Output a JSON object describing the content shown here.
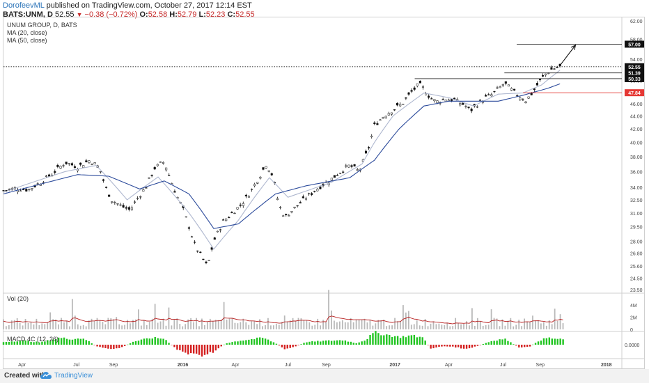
{
  "header": {
    "author": "DorofeevML",
    "published": " published on TradingView.com, October 27, 2017 12:14 EST",
    "symbol": "BATS:UNM, D",
    "last": "52.55",
    "change": "−0.38 (−0.72%)",
    "o_label": "O:",
    "o": "52.58",
    "h_label": "H:",
    "h": "52.79",
    "l_label": "L:",
    "l": "52.23",
    "c_label": "C:",
    "c": "52.55"
  },
  "legend": {
    "title": "UNUM GROUP, D, BATS",
    "ma20": "MA (20, close)",
    "ma50": "MA (50, close)"
  },
  "vol_label": "Vol (20)",
  "macd_label": "MACD 4C (12, 26)",
  "footer": {
    "created": "Created with",
    "brand": "TradingView"
  },
  "colors": {
    "up": "#222222",
    "ma20": "#aeb7cf",
    "ma50": "#2b4a9b",
    "macd_up": "#21c521",
    "macd_dn": "#d42020",
    "level_red": "#e53935",
    "vol_ma": "#b71c1c"
  },
  "chart_data": [
    {
      "type": "candlestick",
      "title": "UNUM GROUP, D, BATS",
      "yscale": "log",
      "ylim": [
        23.5,
        62.0
      ],
      "y_ticks": [
        "62.00",
        "58.00",
        "54.00",
        "52.00",
        "50.00",
        "48.00",
        "46.00",
        "44.00",
        "42.00",
        "40.00",
        "38.00",
        "36.00",
        "34.00",
        "32.50",
        "31.00",
        "29.50",
        "28.00",
        "26.80",
        "25.60",
        "24.50",
        "23.50"
      ],
      "x_ticks": [
        "Apr",
        "Jul",
        "Sep",
        "2016",
        "Apr",
        "Jul",
        "Sep",
        "2017",
        "Apr",
        "Jul",
        "Sep",
        "2018"
      ],
      "x_tick_pos": [
        0.03,
        0.118,
        0.178,
        0.29,
        0.375,
        0.46,
        0.522,
        0.633,
        0.72,
        0.808,
        0.868,
        0.975
      ],
      "close_path": [
        [
          0.0,
          33.6
        ],
        [
          0.02,
          33.9
        ],
        [
          0.04,
          33.7
        ],
        [
          0.06,
          34.6
        ],
        [
          0.08,
          35.8
        ],
        [
          0.1,
          37.2
        ],
        [
          0.12,
          36.6
        ],
        [
          0.14,
          37.5
        ],
        [
          0.155,
          36.5
        ],
        [
          0.165,
          34.0
        ],
        [
          0.175,
          32.5
        ],
        [
          0.19,
          31.8
        ],
        [
          0.205,
          31.3
        ],
        [
          0.215,
          32.5
        ],
        [
          0.23,
          34.0
        ],
        [
          0.245,
          36.5
        ],
        [
          0.26,
          37.3
        ],
        [
          0.27,
          35.0
        ],
        [
          0.28,
          33.0
        ],
        [
          0.29,
          31.5
        ],
        [
          0.3,
          29.5
        ],
        [
          0.31,
          27.5
        ],
        [
          0.32,
          26.5
        ],
        [
          0.33,
          25.5
        ],
        [
          0.34,
          28.0
        ],
        [
          0.355,
          30.0
        ],
        [
          0.37,
          31.0
        ],
        [
          0.385,
          32.0
        ],
        [
          0.4,
          33.5
        ],
        [
          0.415,
          35.5
        ],
        [
          0.425,
          37.0
        ],
        [
          0.435,
          35.5
        ],
        [
          0.445,
          32.0
        ],
        [
          0.455,
          30.5
        ],
        [
          0.47,
          31.5
        ],
        [
          0.49,
          32.8
        ],
        [
          0.51,
          34.0
        ],
        [
          0.53,
          35.0
        ],
        [
          0.545,
          36.0
        ],
        [
          0.56,
          36.8
        ],
        [
          0.575,
          36.0
        ],
        [
          0.59,
          39.0
        ],
        [
          0.6,
          42.5
        ],
        [
          0.615,
          44.0
        ],
        [
          0.63,
          45.0
        ],
        [
          0.645,
          46.0
        ],
        [
          0.66,
          48.0
        ],
        [
          0.672,
          49.3
        ],
        [
          0.68,
          48.5
        ],
        [
          0.69,
          47.0
        ],
        [
          0.7,
          46.3
        ],
        [
          0.715,
          46.8
        ],
        [
          0.73,
          46.5
        ],
        [
          0.745,
          45.8
        ],
        [
          0.755,
          44.8
        ],
        [
          0.765,
          45.8
        ],
        [
          0.78,
          47.0
        ],
        [
          0.79,
          47.5
        ],
        [
          0.8,
          48.5
        ],
        [
          0.81,
          49.5
        ],
        [
          0.82,
          48.5
        ],
        [
          0.83,
          47.5
        ],
        [
          0.838,
          47.0
        ],
        [
          0.845,
          46.5
        ],
        [
          0.855,
          47.8
        ],
        [
          0.865,
          49.5
        ],
        [
          0.875,
          51.0
        ],
        [
          0.885,
          52.0
        ],
        [
          0.9,
          52.55
        ]
      ],
      "ma20_path": [
        [
          0.0,
          33.4
        ],
        [
          0.1,
          36.0
        ],
        [
          0.15,
          36.8
        ],
        [
          0.2,
          32.5
        ],
        [
          0.25,
          35.3
        ],
        [
          0.3,
          31.0
        ],
        [
          0.34,
          27.2
        ],
        [
          0.38,
          30.2
        ],
        [
          0.43,
          35.2
        ],
        [
          0.46,
          32.8
        ],
        [
          0.53,
          34.6
        ],
        [
          0.58,
          37.0
        ],
        [
          0.6,
          40.0
        ],
        [
          0.63,
          44.0
        ],
        [
          0.68,
          47.8
        ],
        [
          0.72,
          47.0
        ],
        [
          0.76,
          45.6
        ],
        [
          0.8,
          47.6
        ],
        [
          0.84,
          47.8
        ],
        [
          0.87,
          49.2
        ],
        [
          0.9,
          51.9
        ]
      ],
      "ma50_path": [
        [
          0.0,
          33.2
        ],
        [
          0.12,
          35.6
        ],
        [
          0.17,
          35.4
        ],
        [
          0.22,
          33.8
        ],
        [
          0.26,
          34.8
        ],
        [
          0.3,
          33.2
        ],
        [
          0.34,
          29.3
        ],
        [
          0.38,
          29.8
        ],
        [
          0.44,
          33.2
        ],
        [
          0.49,
          34.2
        ],
        [
          0.56,
          35.2
        ],
        [
          0.6,
          37.5
        ],
        [
          0.64,
          42.0
        ],
        [
          0.68,
          45.6
        ],
        [
          0.72,
          46.4
        ],
        [
          0.76,
          46.4
        ],
        [
          0.8,
          46.4
        ],
        [
          0.84,
          47.4
        ],
        [
          0.88,
          48.6
        ],
        [
          0.9,
          49.4
        ]
      ],
      "levels": [
        {
          "label": "57.00",
          "value": 57.0,
          "color": "#222222",
          "from": 0.83
        },
        {
          "label": "52.55",
          "value": 52.55,
          "color": "#222222",
          "dotted": true,
          "from": 0.0
        },
        {
          "label": "51.39",
          "value": 51.39,
          "color": "#222222",
          "from": 0.81
        },
        {
          "label": "50.33",
          "value": 50.33,
          "color": "#222222",
          "from": 0.665
        },
        {
          "label": "47.84",
          "value": 47.84,
          "color": "#e53935",
          "from": 0.84
        }
      ],
      "arrow": {
        "from": [
          0.9,
          52.8
        ],
        "to": [
          0.925,
          56.8
        ]
      }
    },
    {
      "type": "bar",
      "title": "Vol (20)",
      "y_ticks": [
        "4M",
        "2M",
        "0"
      ],
      "ylim": [
        0,
        5.5
      ]
    },
    {
      "type": "bar",
      "title": "MACD 4C (12, 26)",
      "y_ticks": [
        "0.0000"
      ],
      "macd_envelope": [
        [
          0.0,
          0.35
        ],
        [
          0.03,
          0.55
        ],
        [
          0.06,
          0.3
        ],
        [
          0.09,
          0.9
        ],
        [
          0.11,
          0.75
        ],
        [
          0.13,
          0.85
        ],
        [
          0.15,
          -0.2
        ],
        [
          0.17,
          -0.6
        ],
        [
          0.19,
          -0.4
        ],
        [
          0.21,
          0.4
        ],
        [
          0.24,
          0.9
        ],
        [
          0.26,
          0.8
        ],
        [
          0.28,
          -0.6
        ],
        [
          0.3,
          -1.2
        ],
        [
          0.32,
          -1.4
        ],
        [
          0.34,
          -0.9
        ],
        [
          0.36,
          0.2
        ],
        [
          0.38,
          0.5
        ],
        [
          0.4,
          0.7
        ],
        [
          0.42,
          0.9
        ],
        [
          0.44,
          0.2
        ],
        [
          0.455,
          -0.6
        ],
        [
          0.47,
          -0.3
        ],
        [
          0.49,
          0.35
        ],
        [
          0.52,
          0.5
        ],
        [
          0.55,
          0.6
        ],
        [
          0.57,
          0.2
        ],
        [
          0.585,
          0.6
        ],
        [
          0.6,
          1.6
        ],
        [
          0.62,
          1.3
        ],
        [
          0.64,
          1.0
        ],
        [
          0.66,
          1.2
        ],
        [
          0.68,
          0.9
        ],
        [
          0.69,
          -0.5
        ],
        [
          0.71,
          -0.2
        ],
        [
          0.73,
          -0.3
        ],
        [
          0.75,
          -0.6
        ],
        [
          0.765,
          -0.2
        ],
        [
          0.79,
          0.5
        ],
        [
          0.81,
          0.8
        ],
        [
          0.82,
          0.3
        ],
        [
          0.835,
          -0.4
        ],
        [
          0.85,
          -0.3
        ],
        [
          0.865,
          0.5
        ],
        [
          0.88,
          0.9
        ],
        [
          0.9,
          0.7
        ]
      ]
    }
  ]
}
